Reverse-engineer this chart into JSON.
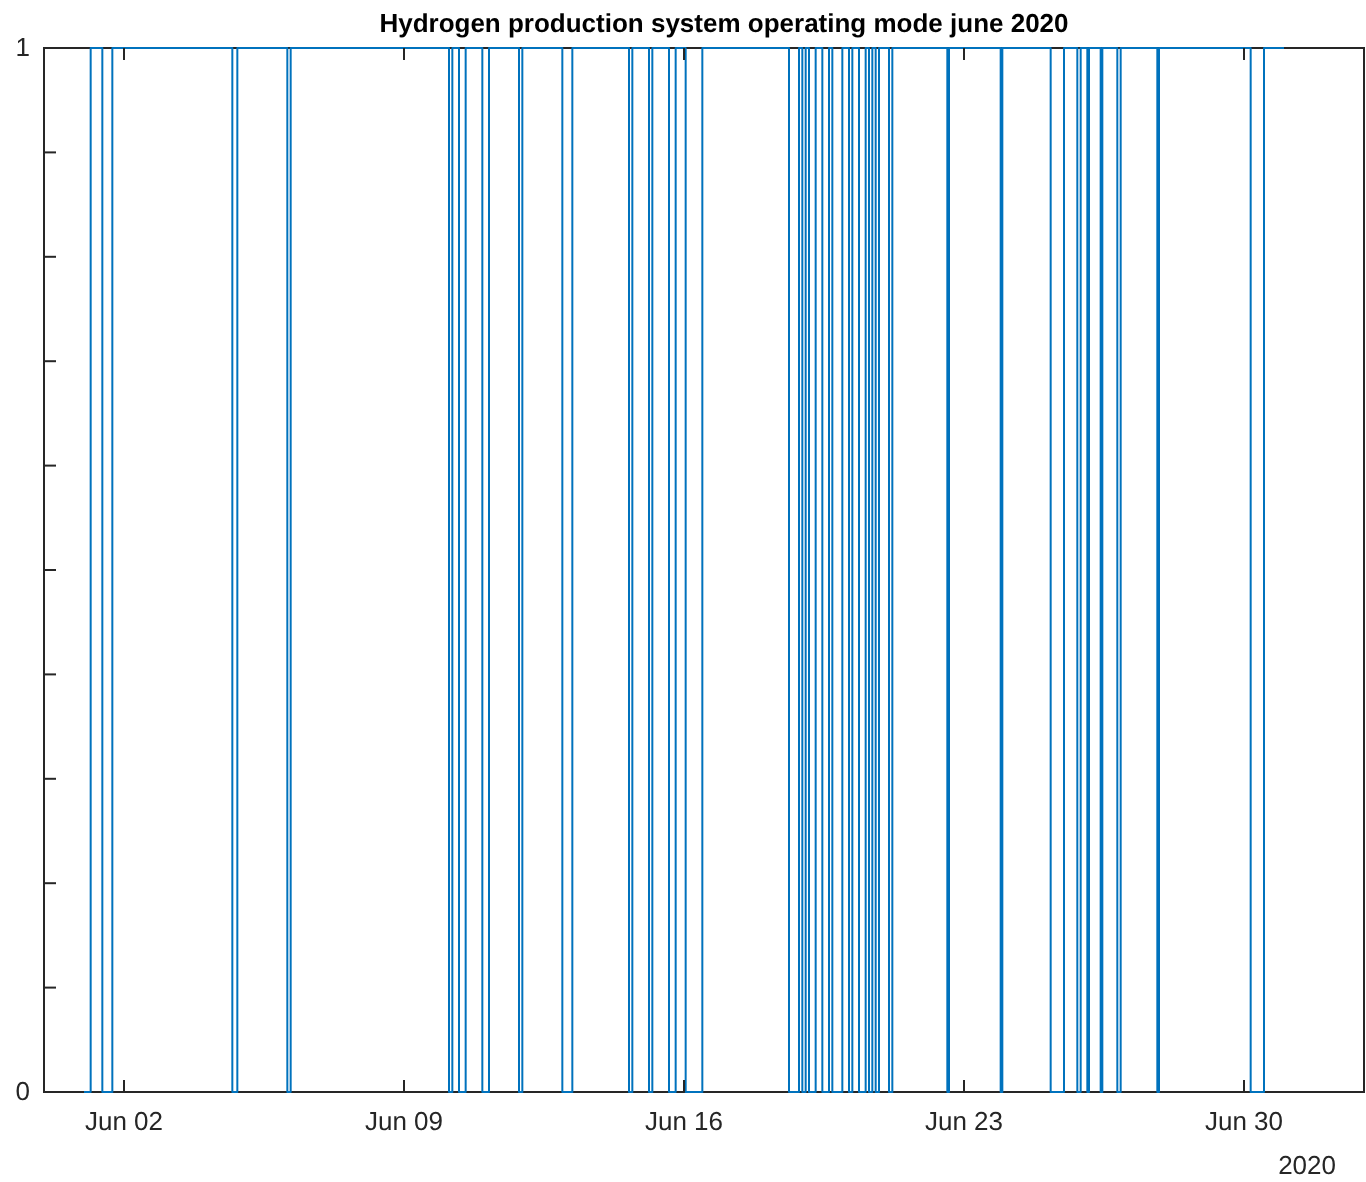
{
  "chart_data": {
    "type": "step",
    "title": "Hydrogen production system operating mode june 2020",
    "annotations": [
      "2020"
    ],
    "xlim": [
      "2020-05-31",
      "2020-07-03"
    ],
    "xticks": [
      {
        "value": "2020-06-02",
        "label": "Jun 02"
      },
      {
        "value": "2020-06-09",
        "label": "Jun 09"
      },
      {
        "value": "2020-06-16",
        "label": "Jun 16"
      },
      {
        "value": "2020-06-23",
        "label": "Jun 23"
      },
      {
        "value": "2020-06-30",
        "label": "Jun 30"
      }
    ],
    "ylim": [
      0,
      1
    ],
    "yticks": [
      0,
      {
        "value": 0.1,
        "label": null
      },
      {
        "value": 0.2,
        "label": null
      },
      {
        "value": 0.3,
        "label": null
      },
      {
        "value": 0.4,
        "label": null
      },
      {
        "value": 0.5,
        "label": null
      },
      {
        "value": 0.6,
        "label": null
      },
      {
        "value": 0.7,
        "label": null
      },
      {
        "value": 0.8,
        "label": null
      },
      {
        "value": 0.9,
        "label": null
      },
      1
    ],
    "grid": false,
    "series": [
      {
        "color": "#0072bd",
        "x": [
          "2020-06-01T00:00",
          "2020-06-01T04:00",
          "2020-06-01T11:00",
          "2020-06-01T17:00",
          "2020-06-04T17:00",
          "2020-06-04T20:00",
          "2020-06-06T02:00",
          "2020-06-06T04:00",
          "2020-06-10T03:00",
          "2020-06-10T05:00",
          "2020-06-10T09:00",
          "2020-06-10T13:00",
          "2020-06-10T23:00",
          "2020-06-11T03:00",
          "2020-06-11T21:00",
          "2020-06-11T23:00",
          "2020-06-12T23:00",
          "2020-06-13T05:00",
          "2020-06-14T15:00",
          "2020-06-14T17:00",
          "2020-06-15T03:00",
          "2020-06-15T05:00",
          "2020-06-15T15:00",
          "2020-06-15T19:00",
          "2020-06-16T01:00",
          "2020-06-16T11:00",
          "2020-06-18T15:00",
          "2020-06-18T21:00",
          "2020-06-18T23:00",
          "2020-06-19T01:00",
          "2020-06-19T03:00",
          "2020-06-19T07:00",
          "2020-06-19T11:00",
          "2020-06-19T15:00",
          "2020-06-19T17:00",
          "2020-06-19T23:00",
          "2020-06-20T03:00",
          "2020-06-20T05:00",
          "2020-06-20T09:00",
          "2020-06-20T13:00",
          "2020-06-20T15:00",
          "2020-06-20T17:00",
          "2020-06-20T19:00",
          "2020-06-20T21:00",
          "2020-06-21T03:00",
          "2020-06-21T05:00",
          "2020-06-22T14:00",
          "2020-06-22T15:00",
          "2020-06-23T22:00",
          "2020-06-23T23:00",
          "2020-06-25T04:00",
          "2020-06-25T12:00",
          "2020-06-25T20:00",
          "2020-06-25T22:00",
          "2020-06-26T02:00",
          "2020-06-26T03:00",
          "2020-06-26T10:00",
          "2020-06-26T11:00",
          "2020-06-26T20:00",
          "2020-06-26T22:00",
          "2020-06-27T20:00",
          "2020-06-27T21:00",
          "2020-06-30T04:00",
          "2020-06-30T12:00",
          "2020-07-01T00:00"
        ],
        "values": [
          0,
          1,
          0,
          1,
          0,
          1,
          0,
          1,
          0,
          1,
          0,
          1,
          0,
          1,
          0,
          1,
          0,
          1,
          0,
          1,
          0,
          1,
          0,
          1,
          0,
          1,
          0,
          1,
          0,
          1,
          0,
          1,
          0,
          1,
          0,
          1,
          0,
          1,
          0,
          1,
          0,
          1,
          0,
          1,
          0,
          1,
          0,
          1,
          0,
          1,
          0,
          1,
          0,
          1,
          0,
          1,
          0,
          1,
          0,
          1,
          0,
          1,
          0,
          1,
          1
        ]
      }
    ]
  }
}
